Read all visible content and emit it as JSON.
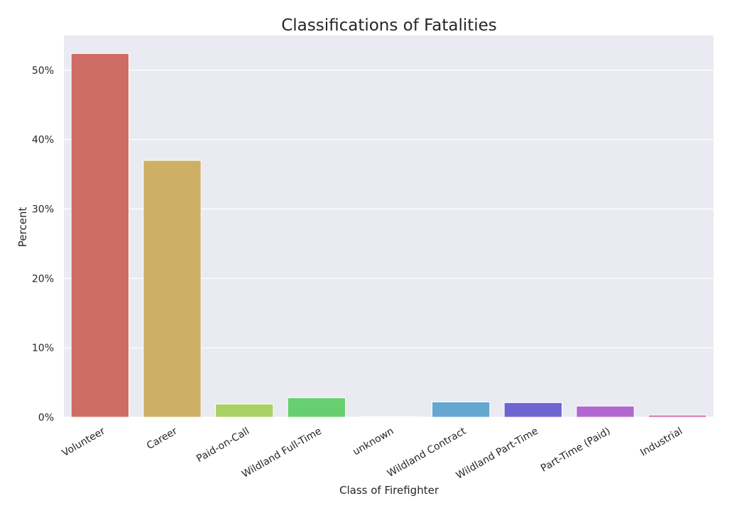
{
  "chart_data": {
    "type": "bar",
    "title": "Classifications of Fatalities",
    "xlabel": "Class of Firefighter",
    "ylabel": "Percent",
    "categories": [
      "Volunteer",
      "Career",
      "Paid-on-Call",
      "Wildland Full-Time",
      "unknown",
      "Wildland Contract",
      "Wildland Part-Time",
      "Part-Time (Paid)",
      "Industrial"
    ],
    "values": [
      52.4,
      37.0,
      1.9,
      2.8,
      0.1,
      2.2,
      2.1,
      1.6,
      0.3
    ],
    "colors": [
      "#cd6d64",
      "#cdb065",
      "#a9d166",
      "#67cf6f",
      "#64cfa9",
      "#65a7d1",
      "#6d66d1",
      "#b067d1",
      "#d166a9"
    ],
    "ylim": [
      0,
      55
    ],
    "yticks": [
      0,
      10,
      20,
      30,
      40,
      50
    ],
    "ytick_labels": [
      "0%",
      "10%",
      "20%",
      "30%",
      "40%",
      "50%"
    ],
    "grid": true,
    "background": "#eaeaf2"
  }
}
